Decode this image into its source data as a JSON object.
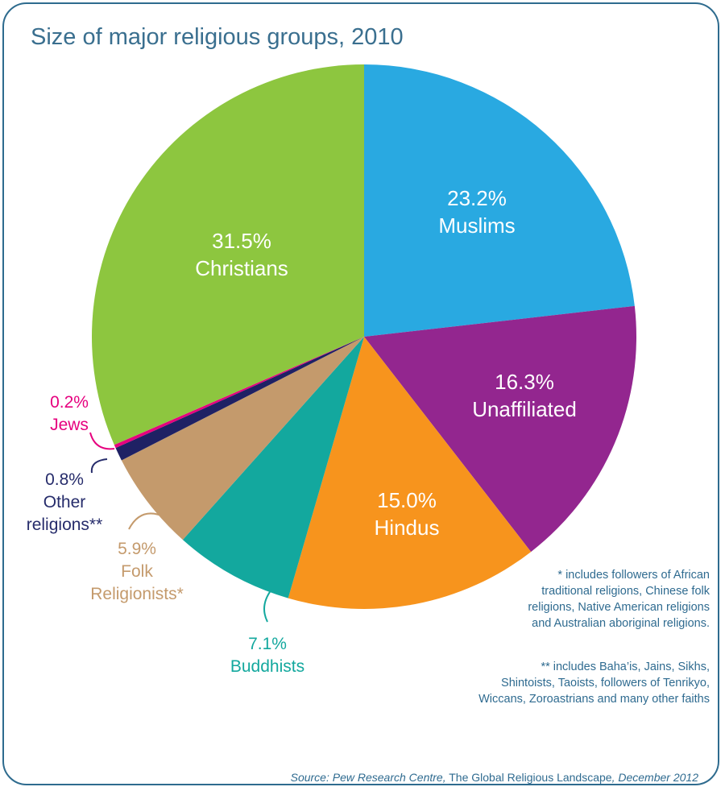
{
  "title": "Size of major religious groups, 2010",
  "chart_data": {
    "type": "pie",
    "title": "Size of major religious groups, 2010",
    "unit": "%",
    "start": "top, clockwise",
    "slices": [
      {
        "label": "Muslims",
        "value": 23.2,
        "value_text": "23.2%",
        "color": "#29a9e1",
        "label_color": "#ffffff",
        "lines": [
          "Muslims"
        ]
      },
      {
        "label": "Unaffiliated",
        "value": 16.3,
        "value_text": "16.3%",
        "color": "#93268f",
        "label_color": "#ffffff",
        "lines": [
          "Unaffiliated"
        ]
      },
      {
        "label": "Hindus",
        "value": 15.0,
        "value_text": "15.0%",
        "color": "#f7941d",
        "label_color": "#ffffff",
        "lines": [
          "Hindus"
        ]
      },
      {
        "label": "Buddhists",
        "value": 7.1,
        "value_text": "7.1%",
        "color": "#13a89e",
        "label_color": "#13a89e",
        "lines": [
          "Buddhists"
        ]
      },
      {
        "label": "Folk Religionists*",
        "value": 5.9,
        "value_text": "5.9%",
        "color": "#c49a6c",
        "label_color": "#c49a6c",
        "lines": [
          "Folk",
          "Religionists*"
        ]
      },
      {
        "label": "Other religions**",
        "value": 0.8,
        "value_text": "0.8%",
        "color": "#1f2164",
        "label_color": "#262c6b",
        "lines": [
          "Other",
          "religions**"
        ]
      },
      {
        "label": "Jews",
        "value": 0.2,
        "value_text": "0.2%",
        "color": "#e6007e",
        "label_color": "#e6007e",
        "lines": [
          "Jews"
        ]
      },
      {
        "label": "Christians",
        "value": 31.5,
        "value_text": "31.5%",
        "color": "#8dc63f",
        "label_color": "#ffffff",
        "lines": [
          "Christians"
        ]
      }
    ]
  },
  "notes": {
    "note1": [
      "* includes followers of African",
      "traditional religions, Chinese folk",
      "religions, Native American religions",
      "and Australian aboriginal religions."
    ],
    "note2": [
      "** includes Baha’is, Jains, Sikhs,",
      "Shintoists, Taoists, followers of Tenrikyo,",
      "Wiccans, Zoroastrians and many other faiths"
    ]
  },
  "source": {
    "prefix": "Source: Pew Research Centre,",
    "publication": " The Global Religious Landscape",
    "suffix": ", December 2012"
  },
  "colors": {
    "frame": "#2e6b8e",
    "title": "#3a6f8f",
    "notes": "#2f6b90"
  }
}
